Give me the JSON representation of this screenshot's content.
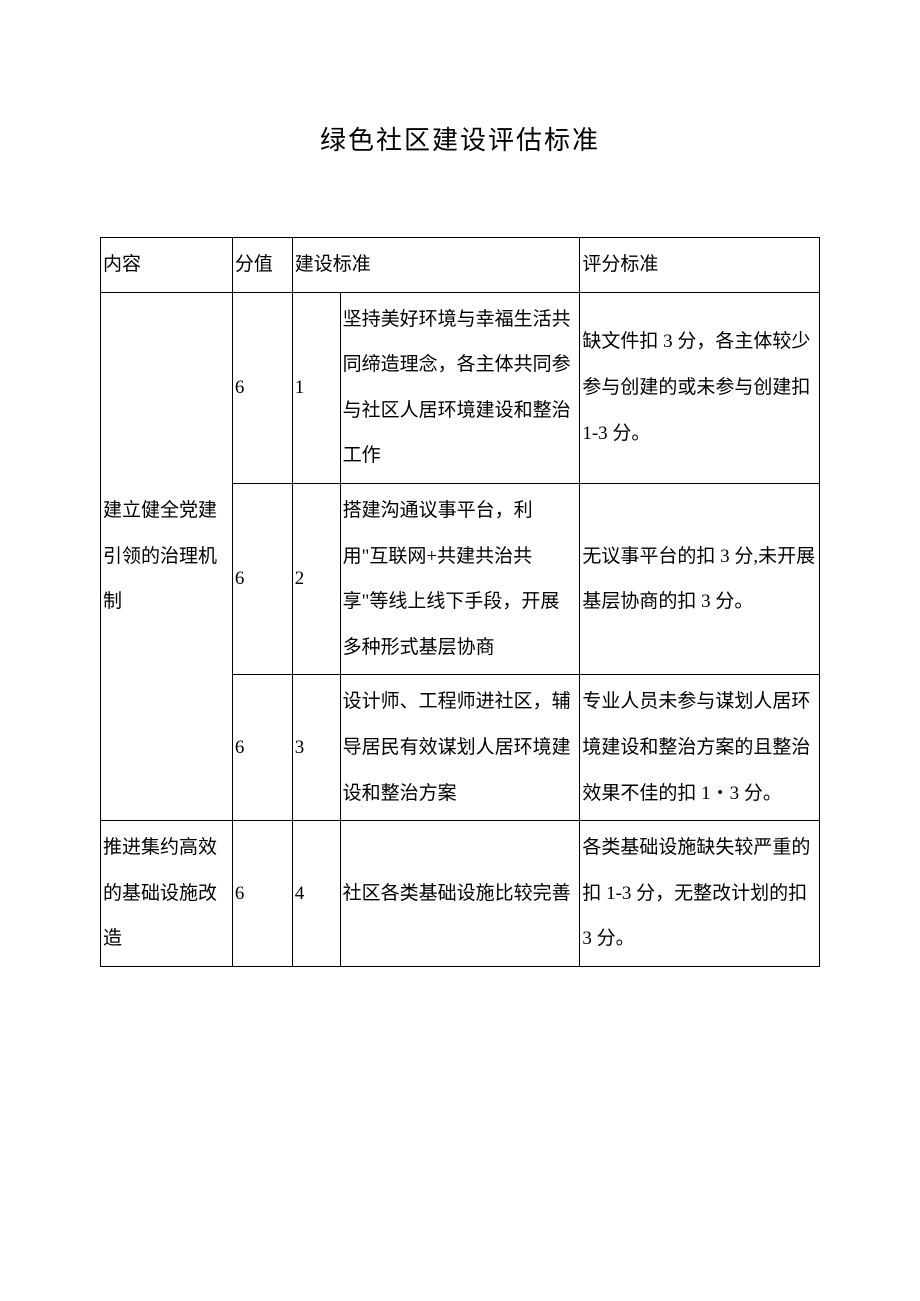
{
  "page": {
    "title": "绿色社区建设评估标准"
  },
  "table": {
    "headers": {
      "category": "内容",
      "score": "分值",
      "standard": "建设标准",
      "criteria": "评分标准"
    },
    "rows": [
      {
        "category": "建立健全党建引领的治理机制",
        "category_rowspan": 3,
        "score": "6",
        "num": "1",
        "standard": "坚持美好环境与幸福生活共同缔造理念，各主体共同参与社区人居环境建设和整治工作",
        "criteria": "缺文件扣 3 分，各主体较少参与创建的或未参与创建扣 1-3 分。"
      },
      {
        "score": "6",
        "num": "2",
        "standard": "搭建沟通议事平台，利用\"互联网+共建共治共享\"等线上线下手段，开展多种形式基层协商",
        "criteria": "无议事平台的扣 3 分,未开展基层协商的扣 3 分。"
      },
      {
        "score": "6",
        "num": "3",
        "standard": "设计师、工程师进社区，辅导居民有效谋划人居环境建设和整治方案",
        "criteria": "专业人员未参与谋划人居环境建设和整治方案的且整治效果不佳的扣 1・3 分。"
      },
      {
        "category": "推进集约高效的基础设施改造",
        "category_rowspan": 1,
        "score": "6",
        "num": "4",
        "standard": "社区各类基础设施比较完善",
        "criteria": "各类基础设施缺失较严重的扣 1-3 分，无整改计划的扣 3 分。"
      }
    ]
  },
  "styling": {
    "background_color": "#ffffff",
    "text_color": "#000000",
    "border_color": "#000000",
    "title_fontsize": 26,
    "body_fontsize": 19,
    "line_height": 2.4,
    "font_family": "SimSun"
  }
}
